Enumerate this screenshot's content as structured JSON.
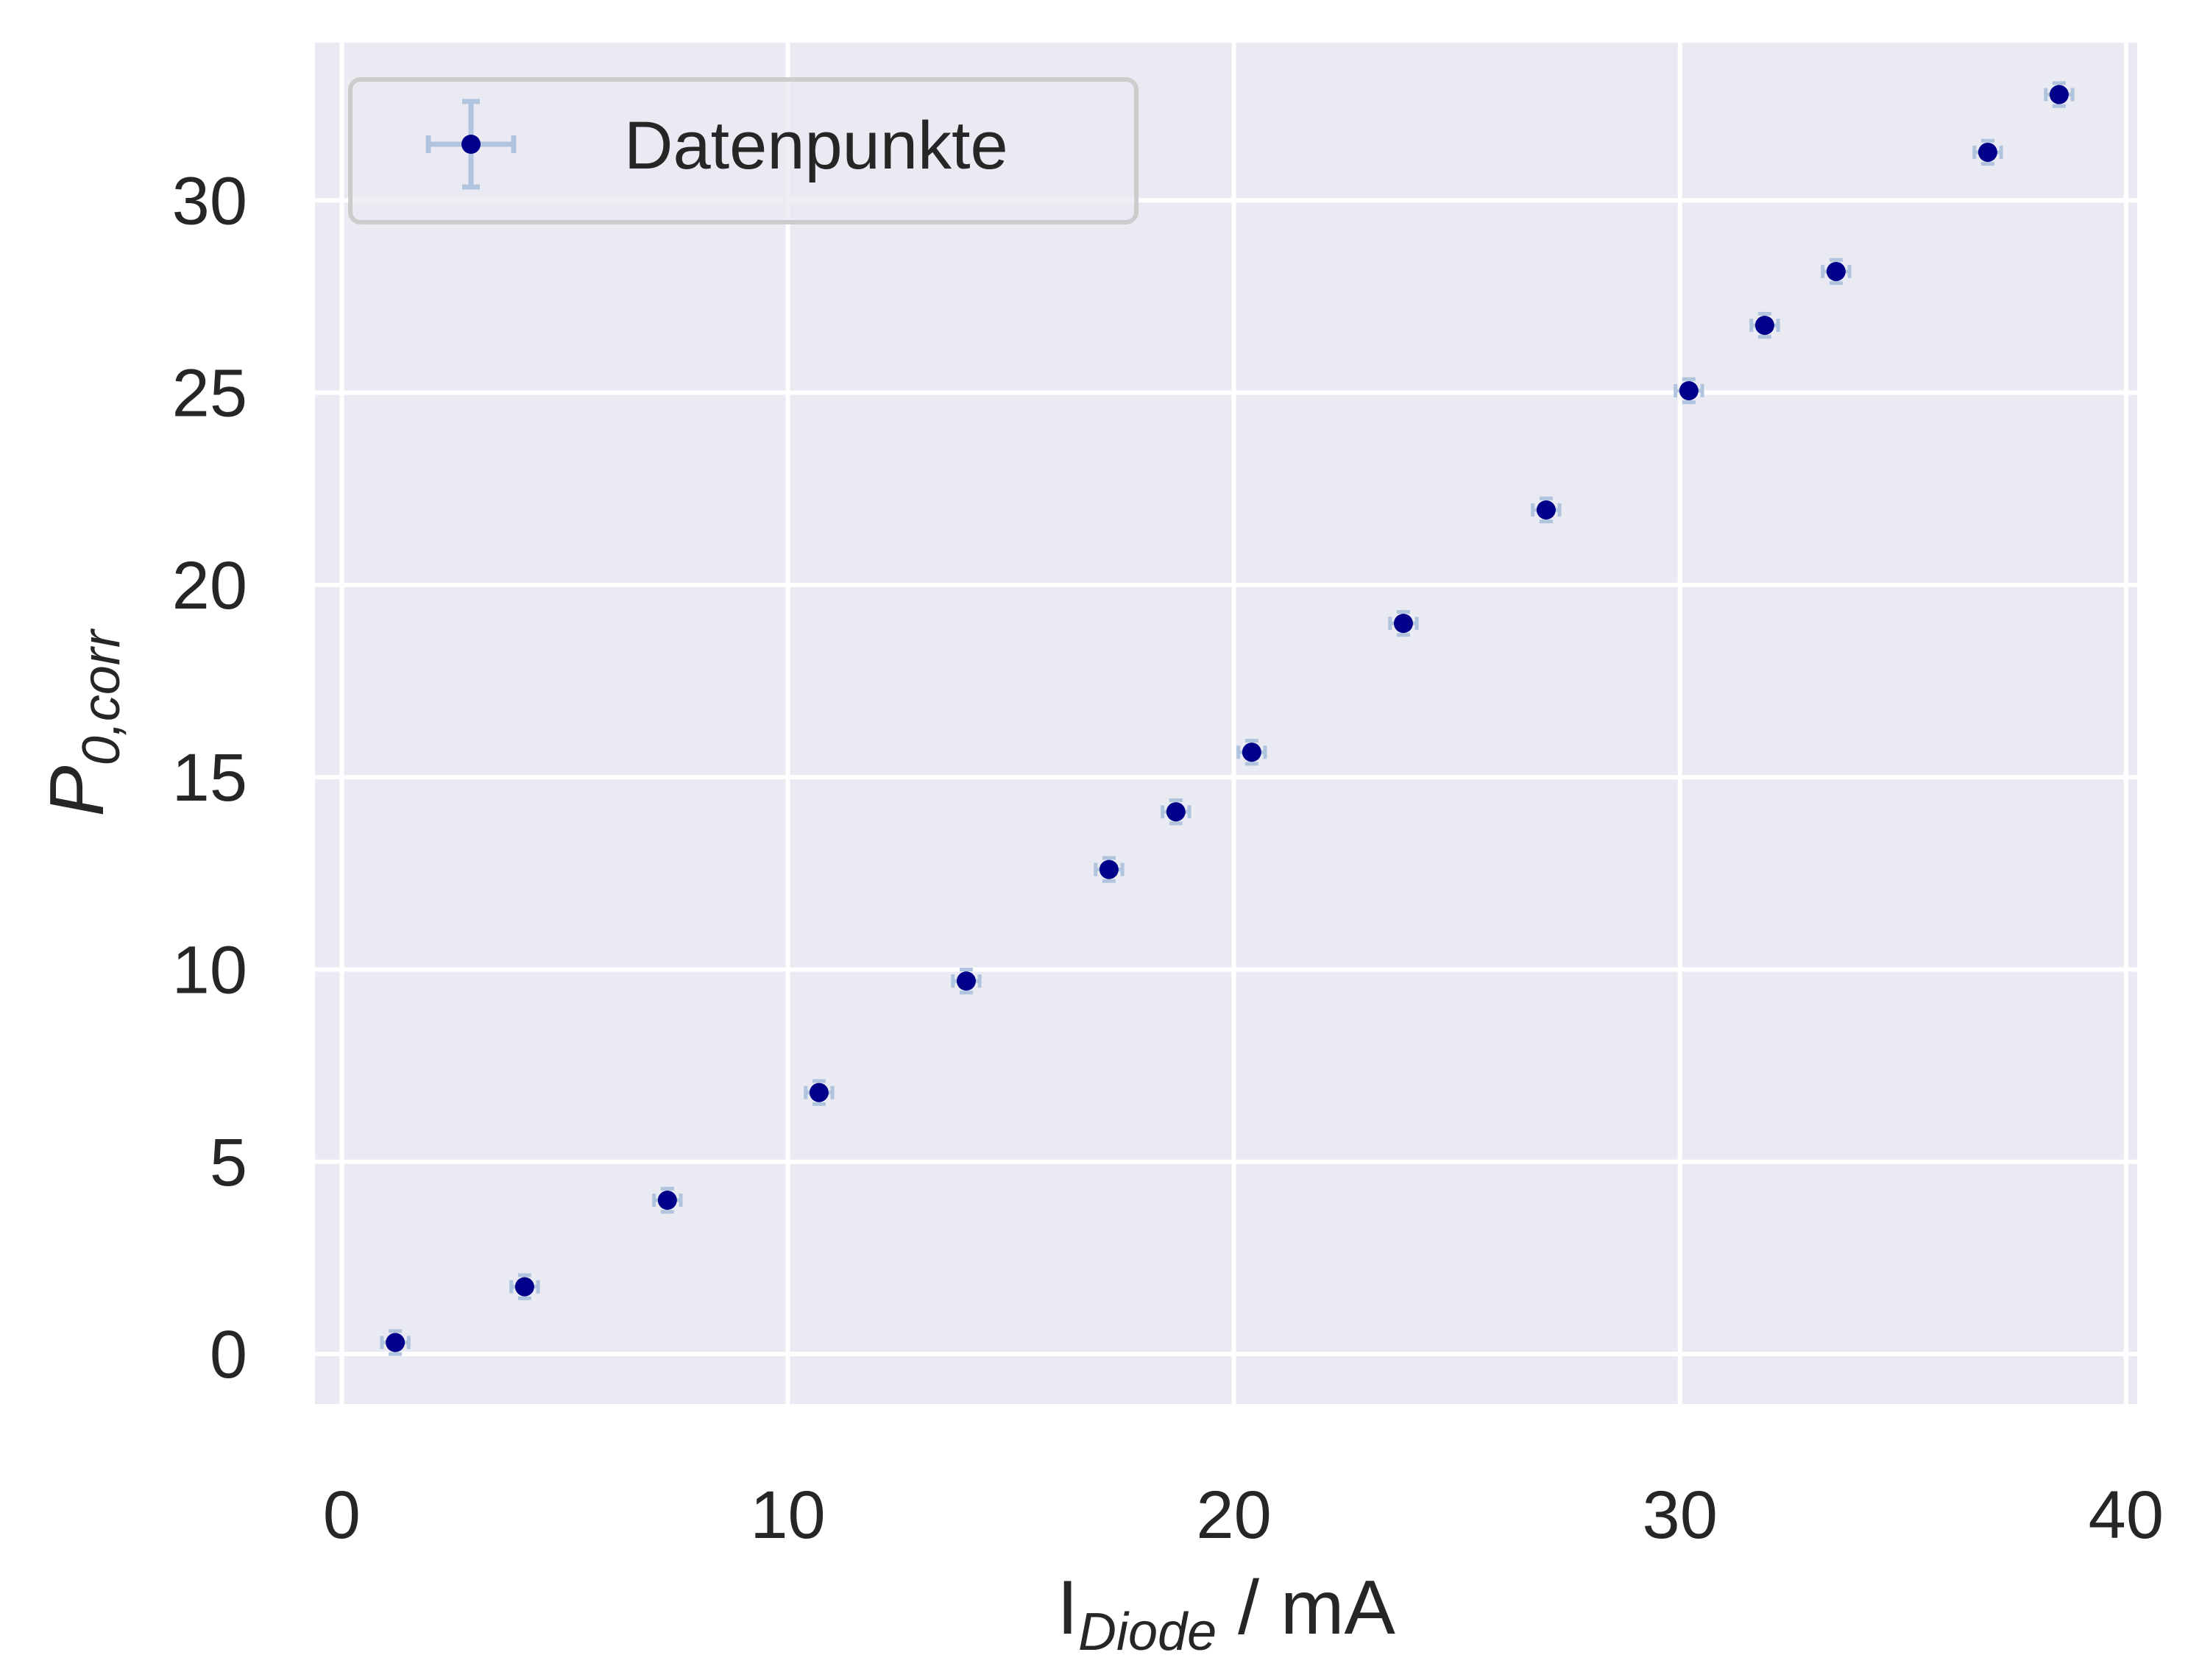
{
  "chart_data": {
    "type": "scatter",
    "xlabel": {
      "main": "I",
      "sub": "Diode",
      "unit": " / mA"
    },
    "ylabel": {
      "main": "P",
      "sub": "0,corr"
    },
    "xlim": [
      -0.6,
      40.25
    ],
    "ylim": [
      -1.3,
      34.1
    ],
    "xticks": [
      0,
      10,
      20,
      30,
      40
    ],
    "yticks": [
      0,
      5,
      10,
      15,
      20,
      25,
      30
    ],
    "grid": true,
    "legend_position": "top-left",
    "legend": [
      "Datenpunkte"
    ],
    "series": [
      {
        "name": "Datenpunkte",
        "marker_color": "#00008b",
        "errorbar_color": "#b0c4de",
        "x": [
          1.2,
          4.1,
          7.3,
          10.7,
          14.0,
          17.2,
          18.7,
          20.4,
          23.8,
          27.0,
          30.2,
          31.9,
          33.5,
          36.9,
          38.5
        ],
        "y": [
          0.3,
          1.75,
          4.0,
          6.8,
          9.7,
          12.6,
          14.1,
          15.65,
          19.0,
          21.95,
          25.05,
          26.75,
          28.15,
          31.25,
          32.75
        ],
        "xerr": [
          0.3,
          0.3,
          0.3,
          0.3,
          0.3,
          0.3,
          0.3,
          0.3,
          0.3,
          0.3,
          0.3,
          0.3,
          0.3,
          0.3,
          0.3
        ],
        "yerr": [
          0.3,
          0.3,
          0.3,
          0.3,
          0.3,
          0.3,
          0.3,
          0.3,
          0.3,
          0.3,
          0.3,
          0.3,
          0.3,
          0.3,
          0.3
        ]
      }
    ]
  },
  "colors": {
    "plot_background": "#eaeaf2",
    "grid": "#ffffff",
    "text": "#262626",
    "legend_border": "#cccccc"
  }
}
